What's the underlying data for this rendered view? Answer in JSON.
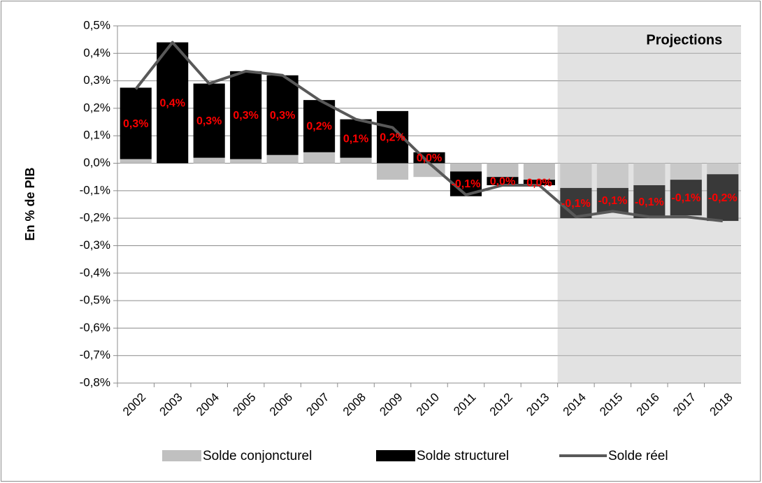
{
  "chart_data": {
    "type": "bar",
    "stacked": true,
    "y_label": "En % de PIB",
    "categories": [
      "2002",
      "2003",
      "2004",
      "2005",
      "2006",
      "2007",
      "2008",
      "2009",
      "2010",
      "2011",
      "2012",
      "2013",
      "2014",
      "2015",
      "2016",
      "2017",
      "2018"
    ],
    "series": [
      {
        "name": "Solde conjoncturel",
        "type": "bar",
        "color": "#c0c0c0",
        "values": [
          0.015,
          0,
          0.02,
          0.015,
          0.03,
          0.04,
          0.02,
          -0.06,
          -0.05,
          -0.03,
          -0.05,
          -0.06,
          -0.09,
          -0.09,
          -0.08,
          -0.06,
          -0.04
        ]
      },
      {
        "name": "Solde structurel",
        "type": "bar",
        "color": "#000000",
        "values": [
          0.26,
          0.44,
          0.27,
          0.32,
          0.29,
          0.19,
          0.14,
          0.19,
          0.04,
          -0.09,
          -0.03,
          -0.02,
          -0.11,
          -0.09,
          -0.12,
          -0.13,
          -0.17
        ],
        "value_labels": [
          "0,3%",
          "0,4%",
          "0,3%",
          "0,3%",
          "0,3%",
          "0,2%",
          "0,1%",
          "0,2%",
          "0,0%",
          "-0,1%",
          "0,0%",
          "0,0%",
          "-0,1%",
          "-0,1%",
          "-0,1%",
          "-0,1%",
          "-0,2%"
        ]
      },
      {
        "name": "Solde réel",
        "type": "line",
        "color": "#595959",
        "values": [
          0.27,
          0.44,
          0.29,
          0.335,
          0.32,
          0.23,
          0.16,
          0.13,
          0.0,
          -0.115,
          -0.08,
          -0.08,
          -0.195,
          -0.175,
          -0.195,
          -0.195,
          -0.21
        ]
      }
    ],
    "ylim": [
      -0.8,
      0.5
    ],
    "yticks": [
      {
        "value": 0.5,
        "label": "0,5%"
      },
      {
        "value": 0.4,
        "label": "0,4%"
      },
      {
        "value": 0.3,
        "label": "0,3%"
      },
      {
        "value": 0.2,
        "label": "0,2%"
      },
      {
        "value": 0.1,
        "label": "0,1%"
      },
      {
        "value": 0,
        "label": "0,0%"
      },
      {
        "value": -0.1,
        "label": "-0,1%"
      },
      {
        "value": -0.2,
        "label": "-0,2%"
      },
      {
        "value": -0.3,
        "label": "-0,3%"
      },
      {
        "value": -0.4,
        "label": "-0,4%"
      },
      {
        "value": -0.5,
        "label": "-0,5%"
      },
      {
        "value": -0.6,
        "label": "-0,6%"
      },
      {
        "value": -0.7,
        "label": "-0,7%"
      },
      {
        "value": -0.8,
        "label": "-0,8%"
      }
    ],
    "grid": true,
    "shaded_region": {
      "label": "Projections",
      "from": "2014",
      "color": "#e2e2e2"
    },
    "legend": "bottom"
  }
}
